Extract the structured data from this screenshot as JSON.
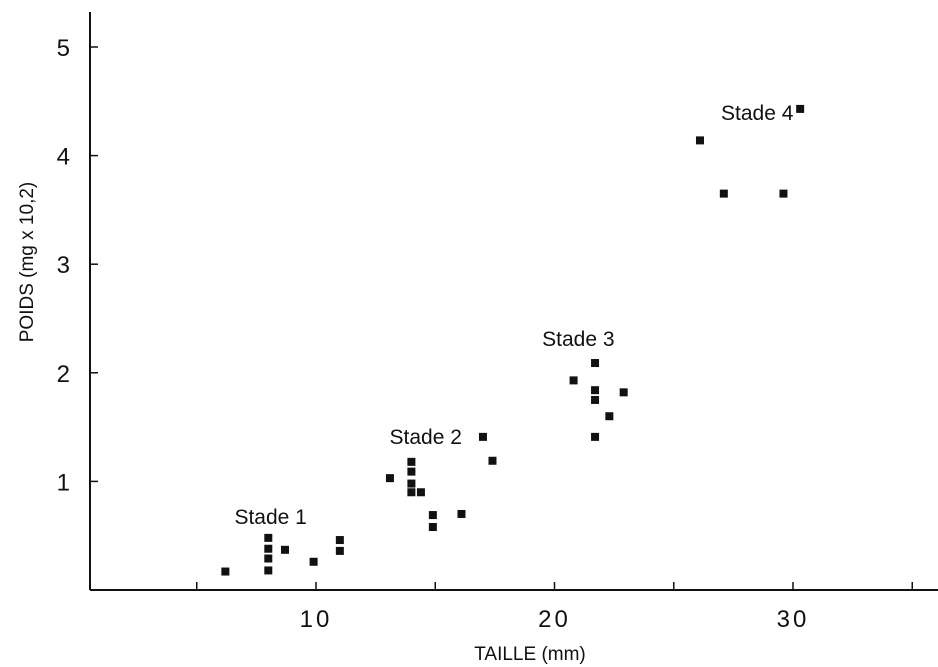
{
  "chart_data": {
    "type": "scatter",
    "title": "",
    "xlabel": "TAILLE  (mm)",
    "ylabel": "POIDS  (mg x 10,2)",
    "xlim": [
      3,
      40
    ],
    "ylim": [
      0,
      5.1
    ],
    "x_ticks": [
      5,
      10,
      15,
      20,
      25,
      30,
      35
    ],
    "x_tick_labels": [
      {
        "value": 10,
        "label": "10"
      },
      {
        "value": 20,
        "label": "20"
      },
      {
        "value": 30,
        "label": "30"
      }
    ],
    "y_ticks": [
      1,
      2,
      3,
      4,
      5
    ],
    "y_tick_labels": [
      {
        "value": 1,
        "label": "1"
      },
      {
        "value": 2,
        "label": "2"
      },
      {
        "value": 3,
        "label": "3"
      },
      {
        "value": 4,
        "label": "4"
      },
      {
        "value": 5,
        "label": "5"
      }
    ],
    "grid": false,
    "marker": "square",
    "point_color": "#111111",
    "annotations": [
      {
        "text": "Stade 1",
        "x": 8.1,
        "y": 0.68
      },
      {
        "text": "Stade 2",
        "x": 14.6,
        "y": 1.42
      },
      {
        "text": "Stade 3",
        "x": 21.0,
        "y": 2.32
      },
      {
        "text": "Stade 4",
        "x": 28.5,
        "y": 4.4
      }
    ],
    "series": [
      {
        "x": [
          6.2,
          8.0,
          8.0,
          8.0,
          8.0,
          8.7,
          9.9,
          11.0,
          11.0
        ],
        "y": [
          0.17,
          0.18,
          0.29,
          0.38,
          0.48,
          0.37,
          0.26,
          0.36,
          0.46
        ]
      },
      {
        "x": [
          13.1,
          14.0,
          14.0,
          14.0,
          14.0,
          14.4,
          14.9,
          14.9,
          16.1,
          17.0,
          17.4
        ],
        "y": [
          1.03,
          1.18,
          1.09,
          0.98,
          0.9,
          0.9,
          0.58,
          0.69,
          0.7,
          1.41,
          1.19
        ]
      },
      {
        "x": [
          20.8,
          21.7,
          21.7,
          21.7,
          21.7,
          22.3,
          22.9
        ],
        "y": [
          1.93,
          2.09,
          1.84,
          1.75,
          1.41,
          1.6,
          1.82
        ]
      },
      {
        "x": [
          26.1,
          27.1,
          29.6,
          30.3
        ],
        "y": [
          4.14,
          3.65,
          3.65,
          4.43
        ]
      }
    ]
  }
}
